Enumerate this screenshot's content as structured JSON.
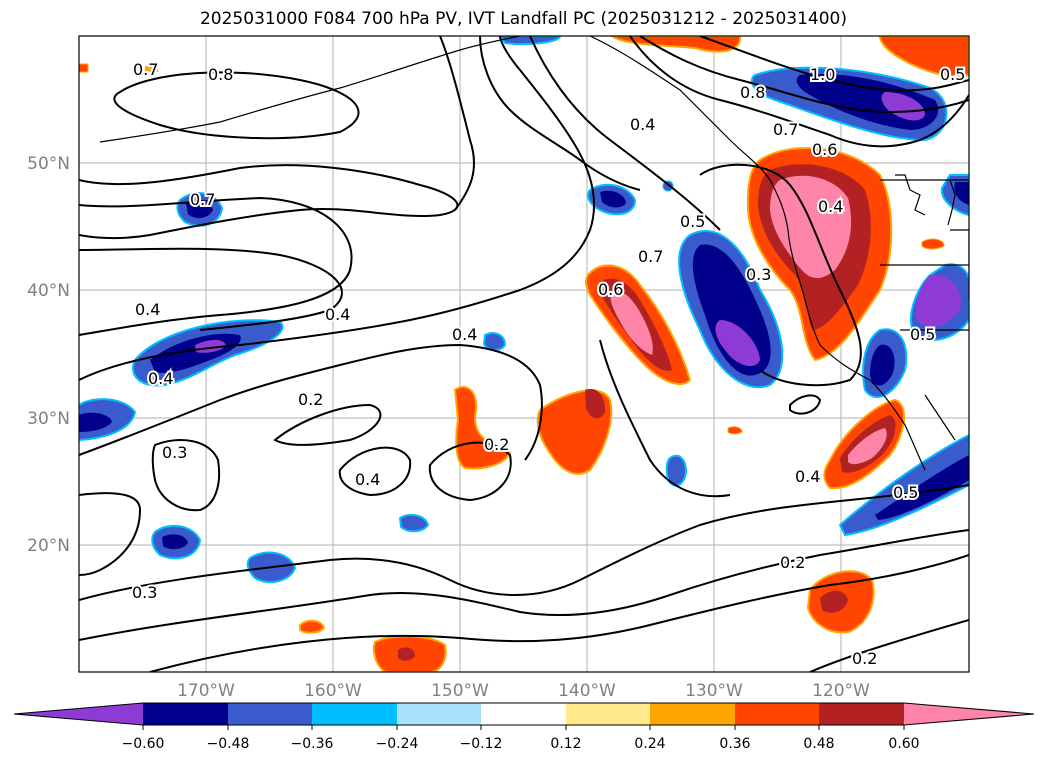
{
  "title": "2025031000 F084 700 hPa PV, IVT Landfall PC (2025031212 - 2025031400)",
  "lat_labels": [
    "50°N",
    "40°N",
    "30°N",
    "20°N"
  ],
  "lon_labels": [
    "170°W",
    "160°W",
    "150°W",
    "140°W",
    "130°W",
    "120°W"
  ],
  "contour_labels": [
    "0.7",
    "0.8",
    "0.4",
    "0.8",
    "0.7",
    "0.6",
    "1.0",
    "0.5",
    "0.7",
    "0.4",
    "0.5",
    "0.4",
    "0.7",
    "0.6",
    "0.3",
    "0.4",
    "0.4",
    "0.4",
    "0.5",
    "0.2",
    "0.3",
    "0.4",
    "0.2",
    "0.4",
    "0.5",
    "0.2",
    "0.3",
    "0.2"
  ],
  "colorbar": {
    "ticks": [
      "−0.60",
      "−0.48",
      "−0.36",
      "−0.24",
      "−0.12",
      "0.12",
      "0.24",
      "0.36",
      "0.48",
      "0.60"
    ],
    "colors": {
      "neg_extend": "#8e3bd6",
      "neg_060": "#00008b",
      "neg_048": "#3a5bcc",
      "neg_036": "#00bfff",
      "neg_024": "#abe0fa",
      "neutral": "#ffffff",
      "pos_012": "#ffe98a",
      "pos_024": "#ffa500",
      "pos_036": "#ff4500",
      "pos_048": "#b22222",
      "pos_extend": "#ff85a8"
    }
  }
}
